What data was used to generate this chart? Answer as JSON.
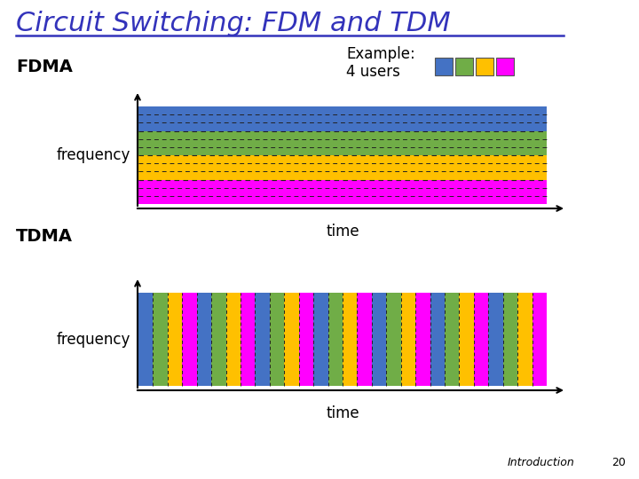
{
  "title": "Circuit Switching: FDM and TDM",
  "title_color": "#3333bb",
  "title_fontsize": 22,
  "bg_color": "#ffffff",
  "fdma_label": "FDMA",
  "tdma_label": "TDMA",
  "example_label": "Example:",
  "users_label": "4 users",
  "frequency_label": "frequency",
  "time_label": "time",
  "intro_label": "Introduction",
  "page_num": "20",
  "user_colors": [
    "#4472c4",
    "#70ad47",
    "#ffc000",
    "#ff00ff"
  ],
  "n_tdm_cycles": 7,
  "n_users": 4,
  "fdm_dashes": [
    5,
    4
  ],
  "tdm_dashes": [
    4,
    3
  ]
}
